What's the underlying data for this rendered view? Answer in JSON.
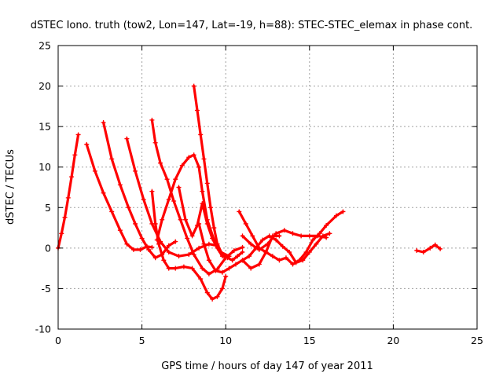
{
  "chart_data": {
    "type": "scatter",
    "title": "dSTEC Iono. truth (tow2, Lon=147, Lat=-19, h=88): STEC-STEC_elemax in phase cont.",
    "xlabel": "GPS time / hours of day 147 of year 2011",
    "ylabel": "dSTEC  / TECUs",
    "xlim": [
      0,
      25
    ],
    "ylim": [
      -10,
      25
    ],
    "xticks": [
      0,
      5,
      10,
      15,
      20,
      25
    ],
    "yticks": [
      -10,
      -5,
      0,
      5,
      10,
      15,
      20,
      25
    ],
    "grid": true,
    "color": "#ff0000",
    "marker": "plus",
    "series": [
      {
        "x": [
          0.0,
          0.2,
          0.4,
          0.6,
          0.8,
          1.0,
          1.2
        ],
        "y": [
          0.0,
          1.8,
          3.8,
          6.2,
          8.8,
          11.5,
          14.0
        ]
      },
      {
        "x": [
          1.7,
          2.2,
          2.7,
          3.2,
          3.7,
          4.1,
          4.5,
          4.9,
          5.3,
          5.6
        ],
        "y": [
          12.8,
          9.5,
          6.8,
          4.5,
          2.2,
          0.5,
          -0.2,
          -0.2,
          0.2,
          0.1
        ]
      },
      {
        "x": [
          2.7,
          3.2,
          3.7,
          4.2,
          4.6,
          5.0,
          5.4,
          5.8,
          6.2,
          6.6,
          7.0
        ],
        "y": [
          15.5,
          11.0,
          7.8,
          5.0,
          3.0,
          1.2,
          -0.2,
          -1.2,
          -0.8,
          0.3,
          0.8
        ]
      },
      {
        "x": [
          4.1,
          4.6,
          5.1,
          5.6,
          6.1,
          6.6,
          7.2,
          7.8,
          8.4,
          9.0,
          9.5
        ],
        "y": [
          13.5,
          9.5,
          6.0,
          3.0,
          0.8,
          -0.5,
          -1.0,
          -0.8,
          0.0,
          0.5,
          0.3
        ]
      },
      {
        "x": [
          5.6,
          5.8,
          6.1,
          6.5,
          6.9,
          7.3,
          7.7,
          8.1,
          8.6,
          9.0,
          9.5,
          10.0,
          10.5,
          11.0
        ],
        "y": [
          15.8,
          13.0,
          10.5,
          8.5,
          5.8,
          3.5,
          1.2,
          -0.8,
          -2.5,
          -3.2,
          -2.6,
          -1.2,
          -0.3,
          0.1
        ]
      },
      {
        "x": [
          5.6,
          5.8,
          6.0,
          6.3,
          6.6,
          7.0,
          7.5,
          8.0,
          8.5,
          8.9,
          9.2,
          9.5,
          9.8,
          10.0
        ],
        "y": [
          7.0,
          3.0,
          0.5,
          -1.5,
          -2.5,
          -2.5,
          -2.3,
          -2.5,
          -3.8,
          -5.5,
          -6.3,
          -6.0,
          -5.0,
          -3.5
        ]
      },
      {
        "x": [
          5.9,
          6.2,
          6.6,
          7.0,
          7.4,
          7.8,
          8.1,
          8.4,
          8.6,
          8.9,
          9.3,
          9.7,
          10.2
        ],
        "y": [
          1.0,
          3.5,
          6.0,
          8.5,
          10.2,
          11.2,
          11.5,
          10.0,
          7.0,
          3.5,
          1.0,
          -0.5,
          -1.0
        ]
      },
      {
        "x": [
          8.1,
          8.3,
          8.5,
          8.7,
          8.9,
          9.1,
          9.3,
          9.5,
          9.8,
          10.1,
          10.4,
          10.7,
          11.0
        ],
        "y": [
          20.0,
          17.0,
          14.0,
          11.0,
          8.0,
          5.0,
          2.5,
          0.5,
          -0.8,
          -1.2,
          -1.5,
          -1.0,
          -0.5
        ]
      },
      {
        "x": [
          7.2,
          7.6,
          8.0,
          8.3,
          8.6,
          8.9,
          9.2,
          9.5,
          9.8,
          10.2
        ],
        "y": [
          7.5,
          3.5,
          1.5,
          2.8,
          5.5,
          3.0,
          1.2,
          0.0,
          -1.0,
          -1.0
        ]
      },
      {
        "x": [
          8.4,
          8.7,
          9.0,
          9.4,
          9.8,
          10.2,
          10.6,
          11.0,
          11.5,
          12.0,
          12.4,
          12.8,
          13.2
        ],
        "y": [
          3.0,
          0.5,
          -1.5,
          -2.8,
          -3.0,
          -2.5,
          -2.0,
          -1.5,
          -2.5,
          -2.0,
          -0.5,
          1.5,
          1.5
        ]
      },
      {
        "x": [
          10.8,
          11.2,
          11.6,
          12.0,
          12.4,
          12.8,
          13.2,
          13.6,
          14.0,
          14.4,
          14.8,
          15.2,
          15.6,
          16.0,
          16.6,
          17.0
        ],
        "y": [
          4.5,
          3.0,
          1.5,
          0.0,
          -0.5,
          -1.0,
          -1.5,
          -1.2,
          -2.0,
          -1.5,
          -0.5,
          1.0,
          1.8,
          2.8,
          4.0,
          4.5
        ]
      },
      {
        "x": [
          11.0,
          11.4,
          11.8,
          12.2,
          12.6,
          13.0,
          13.4,
          13.8,
          14.2,
          14.6,
          15.0,
          15.4,
          15.8,
          16.2
        ],
        "y": [
          -1.5,
          -1.0,
          0.0,
          1.0,
          1.5,
          1.0,
          0.2,
          -0.5,
          -1.8,
          -1.5,
          -0.5,
          0.5,
          1.5,
          1.8
        ]
      },
      {
        "x": [
          11.0,
          11.5,
          12.0,
          12.5,
          13.0,
          13.5,
          14.0,
          14.5,
          15.0,
          15.5,
          16.0
        ],
        "y": [
          1.5,
          0.5,
          -0.2,
          0.5,
          1.8,
          2.2,
          1.8,
          1.5,
          1.5,
          1.5,
          1.3
        ]
      },
      {
        "x": [
          21.4,
          21.8,
          22.2,
          22.5,
          22.8
        ],
        "y": [
          -0.3,
          -0.5,
          0.0,
          0.4,
          -0.1
        ]
      }
    ]
  }
}
